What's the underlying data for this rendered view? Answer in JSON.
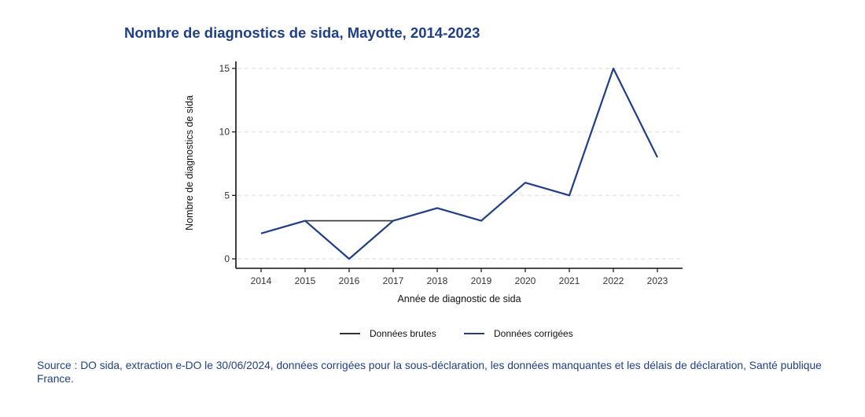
{
  "chart_data": {
    "type": "line",
    "title": "Nombre de diagnostics de sida, Mayotte, 2014-2023",
    "xlabel": "Année de diagnostic de sida",
    "ylabel": "Nombre de diagnostics de sida",
    "categories": [
      "2014",
      "2015",
      "2016",
      "2017",
      "2018",
      "2019",
      "2020",
      "2021",
      "2022",
      "2023"
    ],
    "yticks": [
      0,
      5,
      10,
      15
    ],
    "ylim": [
      0,
      15
    ],
    "grid": true,
    "legend_position": "bottom",
    "series": [
      {
        "name": "Données brutes",
        "color": "#333333",
        "values": [
          2,
          3,
          3,
          3,
          4,
          3,
          6,
          5,
          15,
          8
        ]
      },
      {
        "name": "Données corrigées",
        "color": "#1f3f88",
        "values": [
          2,
          3,
          0,
          3,
          4,
          3,
          6,
          5,
          15,
          8
        ]
      }
    ]
  },
  "source": "Source : DO sida, extraction e-DO le 30/06/2024, données corrigées pour la sous-déclaration, les données manquantes et les délais de déclaration, Santé publique France."
}
